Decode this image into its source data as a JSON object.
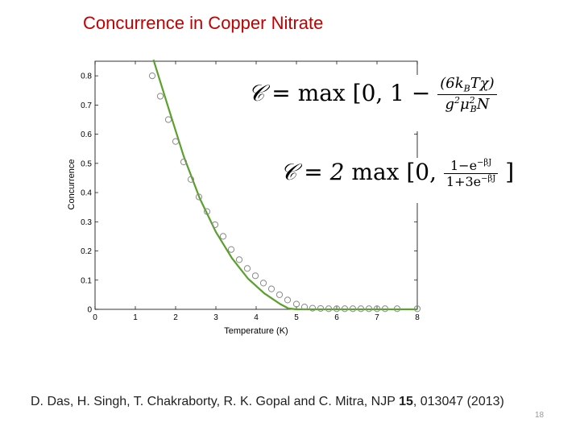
{
  "slide": {
    "title": "Concurrence in Copper Nitrate",
    "page_number": "18"
  },
  "formulas": {
    "formula1": {
      "lhs": "𝒞 =",
      "op": "max",
      "bracket_open": "[0, 1 −",
      "num": "(6k",
      "num_sub": "B",
      "num_rest": "Tχ)",
      "den": "g",
      "den_sup": "2",
      "den_mu": "μ",
      "den_mu_sup": "2",
      "den_mu_sub": "B",
      "den_rest": "N"
    },
    "formula2": {
      "lhs": "𝒞 = 2",
      "op": "max",
      "bracket_open": "[0,",
      "num": "1−e",
      "num_sup": "−βJ",
      "den": "1+3e",
      "den_sup": "−βJ",
      "bracket_close": "]"
    }
  },
  "reference": {
    "authors": "D. Das, H. Singh, T. Chakraborty, R. K. Gopal and C. Mitra, NJP ",
    "volume": "15",
    "rest": ", 013047 (2013)"
  },
  "chart_data": {
    "type": "scatter",
    "title": "",
    "xlabel": "Temperature (K)",
    "ylabel": "Concurrence",
    "xlim": [
      0,
      8
    ],
    "ylim": [
      0,
      0.85
    ],
    "xticks": [
      0,
      1,
      2,
      3,
      4,
      5,
      6,
      7,
      8
    ],
    "yticks": [
      0,
      0.1,
      0.2,
      0.3,
      0.4,
      0.5,
      0.6,
      0.7,
      0.8
    ],
    "grid": false,
    "series": [
      {
        "kind": "markers",
        "marker": "open-circle",
        "color": "#8a8a8a",
        "x": [
          1.42,
          1.62,
          1.82,
          2.0,
          2.2,
          2.38,
          2.58,
          2.78,
          2.98,
          3.18,
          3.38,
          3.58,
          3.78,
          3.98,
          4.18,
          4.38,
          4.58,
          4.78,
          5.0,
          5.2,
          5.4,
          5.6,
          5.8,
          6.0,
          6.2,
          6.4,
          6.6,
          6.8,
          7.0,
          7.2,
          7.5,
          8.0
        ],
        "y": [
          0.8,
          0.73,
          0.65,
          0.575,
          0.505,
          0.445,
          0.385,
          0.335,
          0.29,
          0.25,
          0.205,
          0.17,
          0.14,
          0.115,
          0.09,
          0.07,
          0.05,
          0.032,
          0.018,
          0.008,
          0.004,
          0.003,
          0.002,
          0.002,
          0.002,
          0.002,
          0.002,
          0.002,
          0.002,
          0.002,
          0.002,
          0.002
        ]
      },
      {
        "kind": "line",
        "color": "#5aa02c",
        "x": [
          1.45,
          1.8,
          2.2,
          2.6,
          3.0,
          3.4,
          3.8,
          4.2,
          4.6,
          4.8,
          5.0,
          5.5,
          6.0,
          6.5,
          7.0,
          7.5,
          8.0
        ],
        "y": [
          0.855,
          0.7,
          0.525,
          0.38,
          0.265,
          0.175,
          0.105,
          0.055,
          0.018,
          0.003,
          0,
          0,
          0,
          0,
          0,
          0,
          0
        ]
      }
    ]
  }
}
